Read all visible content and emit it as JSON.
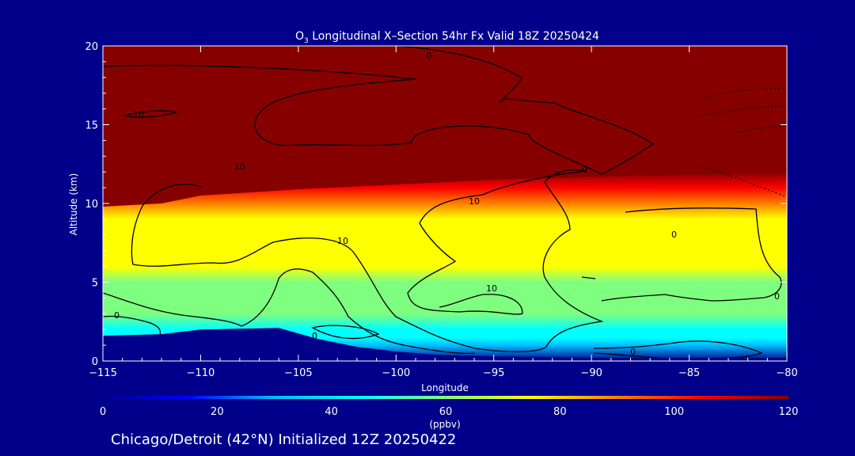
{
  "chart_data": {
    "type": "heatmap",
    "title_prefix": "O",
    "title_subscript": "3",
    "title_rest": " Longitudinal X–Section 54hr  Fx Valid 18Z 20250424",
    "xlabel": "Longitude",
    "ylabel": "Altitude (km)",
    "xlim": [
      -115,
      -80
    ],
    "ylim": [
      0,
      20
    ],
    "x_ticks": [
      -115,
      -110,
      -105,
      -100,
      -95,
      -90,
      -85,
      -80
    ],
    "x_tick_labels": [
      "−115",
      "−110",
      "−105",
      "−100",
      "−95",
      "−90",
      "−85",
      "−80"
    ],
    "y_ticks": [
      0,
      5,
      10,
      15,
      20
    ],
    "y_tick_labels": [
      "0",
      "5",
      "10",
      "15",
      "20"
    ],
    "colorbar": {
      "min": 0,
      "max": 120,
      "ticks": [
        0,
        20,
        40,
        60,
        80,
        100,
        120
      ],
      "tick_labels": [
        "0",
        "20",
        "40",
        "60",
        "80",
        "100",
        "120"
      ],
      "units": "(ppbv)"
    },
    "contour_labels": [
      "10",
      "10",
      "10",
      "10",
      "10",
      "0",
      "0",
      "0",
      "0",
      "0",
      "0",
      "0",
      "0"
    ],
    "ozone_profile": {
      "altitude_km": [
        0,
        1,
        1.5,
        2,
        3,
        4,
        5,
        6,
        7,
        8,
        9,
        10,
        11,
        12,
        20
      ],
      "ppbv": [
        0,
        35,
        45,
        50,
        55,
        60,
        64,
        70,
        75,
        78,
        82,
        95,
        110,
        120,
        120
      ]
    },
    "tropopause_km": {
      "longitude": [
        -115,
        -112,
        -110,
        -105,
        -100,
        -95,
        -90,
        -85,
        -80
      ],
      "altitude_km": [
        9.8,
        10.0,
        10.5,
        10.9,
        11.2,
        11.5,
        11.7,
        11.8,
        11.9
      ]
    },
    "terrain_km": {
      "longitude": [
        -115,
        -112,
        -110,
        -106,
        -104,
        -102,
        -100,
        -98,
        -95,
        -92,
        -90,
        -85,
        -80
      ],
      "altitude_km": [
        1.6,
        1.7,
        2.0,
        2.1,
        1.4,
        0.9,
        0.6,
        0.4,
        0.3,
        0.25,
        0.2,
        0.2,
        0.2
      ]
    },
    "footer": "Chicago/Detroit (42°N) Initialized 12Z 20250422",
    "colors": {
      "background": "#00008a",
      "text": "#ffffff",
      "contour": "#000000",
      "colormap": [
        "#00008a",
        "#0000ff",
        "#00bfff",
        "#00ffff",
        "#7fff7f",
        "#ffff00",
        "#ff7f00",
        "#ff0000",
        "#870000"
      ]
    }
  }
}
